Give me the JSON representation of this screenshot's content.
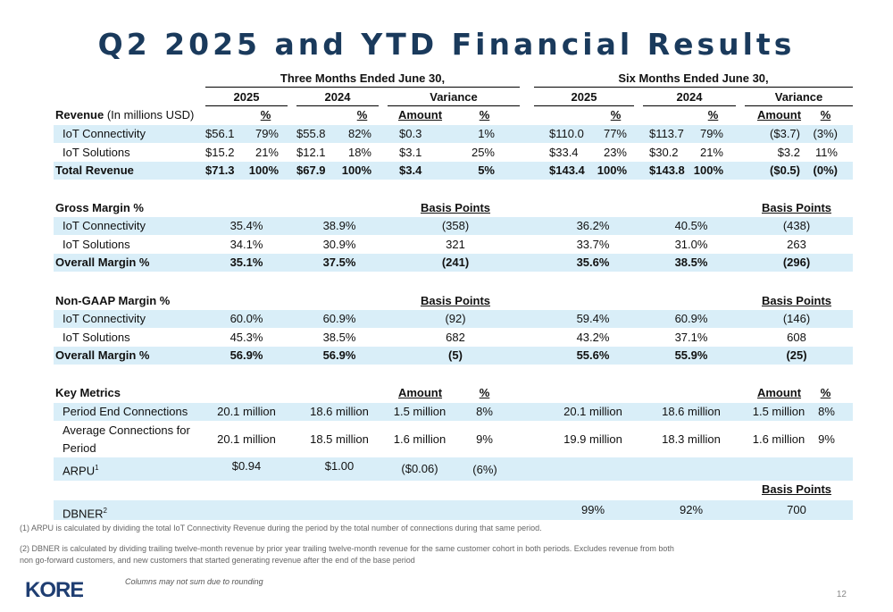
{
  "title": "Q2 2025 and YTD Financial Results",
  "header": {
    "three_months": "Three Months Ended June 30,",
    "six_months": "Six Months Ended June 30,",
    "y2025": "2025",
    "y2024": "2024",
    "variance": "Variance",
    "pct": "%",
    "amount": "Amount",
    "basis_points": "Basis Points"
  },
  "revenue": {
    "label": "Revenue",
    "unit": "(In millions USD)",
    "rows": [
      {
        "label": "IoT Connectivity",
        "q25": "$56.1",
        "q25p": "79%",
        "q24": "$55.8",
        "q24p": "82%",
        "qva": "$0.3",
        "qvp": "1%",
        "y25": "$110.0",
        "y25p": "77%",
        "y24": "$113.7",
        "y24p": "79%",
        "yva": "($3.7)",
        "yvp": "(3%)"
      },
      {
        "label": "IoT Solutions",
        "q25": "$15.2",
        "q25p": "21%",
        "q24": "$12.1",
        "q24p": "18%",
        "qva": "$3.1",
        "qvp": "25%",
        "y25": "$33.4",
        "y25p": "23%",
        "y24": "$30.2",
        "y24p": "21%",
        "yva": "$3.2",
        "yvp": "11%"
      },
      {
        "label": "Total Revenue",
        "q25": "$71.3",
        "q25p": "100%",
        "q24": "$67.9",
        "q24p": "100%",
        "qva": "$3.4",
        "qvp": "5%",
        "y25": "$143.4",
        "y25p": "100%",
        "y24": "$143.8",
        "y24p": "100%",
        "yva": "($0.5)",
        "yvp": "(0%)"
      }
    ]
  },
  "gross_margin": {
    "label": "Gross Margin %",
    "rows": [
      {
        "label": "IoT Connectivity",
        "q25": "35.4%",
        "q24": "38.9%",
        "qbp": "(358)",
        "y25": "36.2%",
        "y24": "40.5%",
        "ybp": "(438)"
      },
      {
        "label": "IoT Solutions",
        "q25": "34.1%",
        "q24": "30.9%",
        "qbp": "321",
        "y25": "33.7%",
        "y24": "31.0%",
        "ybp": "263"
      },
      {
        "label": "Overall Margin %",
        "q25": "35.1%",
        "q24": "37.5%",
        "qbp": "(241)",
        "y25": "35.6%",
        "y24": "38.5%",
        "ybp": "(296)"
      }
    ]
  },
  "non_gaap_margin": {
    "label": "Non-GAAP Margin %",
    "rows": [
      {
        "label": "IoT Connectivity",
        "q25": "60.0%",
        "q24": "60.9%",
        "qbp": "(92)",
        "y25": "59.4%",
        "y24": "60.9%",
        "ybp": "(146)"
      },
      {
        "label": "IoT Solutions",
        "q25": "45.3%",
        "q24": "38.5%",
        "qbp": "682",
        "y25": "43.2%",
        "y24": "37.1%",
        "ybp": "608"
      },
      {
        "label": "Overall Margin %",
        "q25": "56.9%",
        "q24": "56.9%",
        "qbp": "(5)",
        "y25": "55.6%",
        "y24": "55.9%",
        "ybp": "(25)"
      }
    ]
  },
  "key_metrics": {
    "label": "Key Metrics",
    "rows": [
      {
        "label": "Period End Connections",
        "q25": "20.1 million",
        "q24": "18.6 million",
        "qva": "1.5 million",
        "qvp": "8%",
        "y25": "20.1 million",
        "y24": "18.6 million",
        "yva": "1.5 million",
        "yvp": "8%"
      },
      {
        "label1": "Average Connections for",
        "label2": "Period",
        "q25": "20.1 million",
        "q24": "18.5 million",
        "qva": "1.6 million",
        "qvp": "9%",
        "y25": "19.9 million",
        "y24": "18.3 million",
        "yva": "1.6 million",
        "yvp": "9%"
      }
    ],
    "arpu": {
      "label": "ARPU",
      "sup": "1",
      "q25": "$0.94",
      "q24": "$1.00",
      "qva": "($0.06)",
      "qvp": "(6%)"
    },
    "dbner": {
      "label": "DBNER",
      "sup": "2",
      "y25": "99%",
      "y24": "92%",
      "ybp": "700"
    }
  },
  "footnotes": {
    "f1": "(1) ARPU is calculated by dividing the total IoT Connectivity Revenue during the period by the total number of connections during that same period.",
    "f2a": "(2) DBNER is calculated by dividing trailing twelve-month revenue by prior year trailing twelve-month revenue for the same customer cohort in both periods. Excludes revenue from both",
    "f2b": "non go-forward customers, and new customers that started generating revenue after the end of the base period"
  },
  "rounding_note": "Columns may not sum due to rounding",
  "page_number": "12",
  "logo_text": "KORE",
  "colors": {
    "title": "#1a3a5c",
    "band": "#d9eef8",
    "logo": "#1f3e72"
  }
}
